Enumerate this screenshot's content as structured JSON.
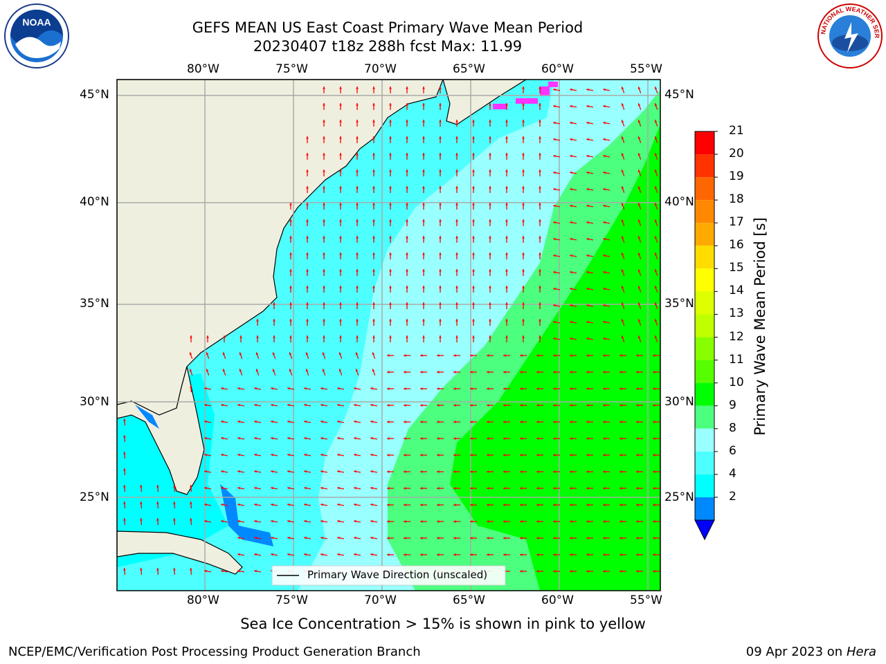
{
  "header": {
    "title_line1": "GEFS MEAN US East Coast Primary Wave Mean Period",
    "title_line2": "20230407 t18z 288h fcst   Max: 11.99",
    "noara_logo_text": "NOAA",
    "nws_logo_text": "NATIONAL WEATHER SERVICE"
  },
  "map": {
    "lon_labels": [
      "80°W",
      "75°W",
      "70°W",
      "65°W",
      "60°W",
      "55°W"
    ],
    "lat_labels": [
      "45°N",
      "40°N",
      "35°N",
      "30°N",
      "25°N"
    ],
    "legend_label": "Primary Wave Direction (unscaled)",
    "colors": {
      "land": "#efefdf",
      "cyan_4_6": "#00ffff",
      "cyan_6_8": "#4dffff",
      "cyan_8_9": "#99ffff",
      "green_9_10": "#4cff7f",
      "green_10_11": "#00ff00",
      "ice": "#ff33ff",
      "arrow": "#ff0000"
    }
  },
  "colorbar": {
    "title": "Primary Wave Mean Period [s]",
    "ticks": [
      "21",
      "20",
      "19",
      "18",
      "17",
      "16",
      "15",
      "14",
      "13",
      "12",
      "11",
      "10",
      "9",
      "8",
      "6",
      "4",
      "2"
    ],
    "colors": [
      "#ff0000",
      "#ff3300",
      "#ff6600",
      "#ff8800",
      "#ffaa00",
      "#ffdd00",
      "#ffff00",
      "#ddff00",
      "#c0ff00",
      "#88ff00",
      "#55ff00",
      "#00ff00",
      "#4cff7f",
      "#99ffff",
      "#4dffff",
      "#00ffff",
      "#0088ff",
      "#0000ff"
    ]
  },
  "caption": "Sea Ice Concentration > 15% is shown in pink to yellow",
  "footer": {
    "left": "NCEP/EMC/Verification Post Processing Product Generation Branch",
    "right_date": "09 Apr 2023 on ",
    "right_machine": "Hera"
  }
}
